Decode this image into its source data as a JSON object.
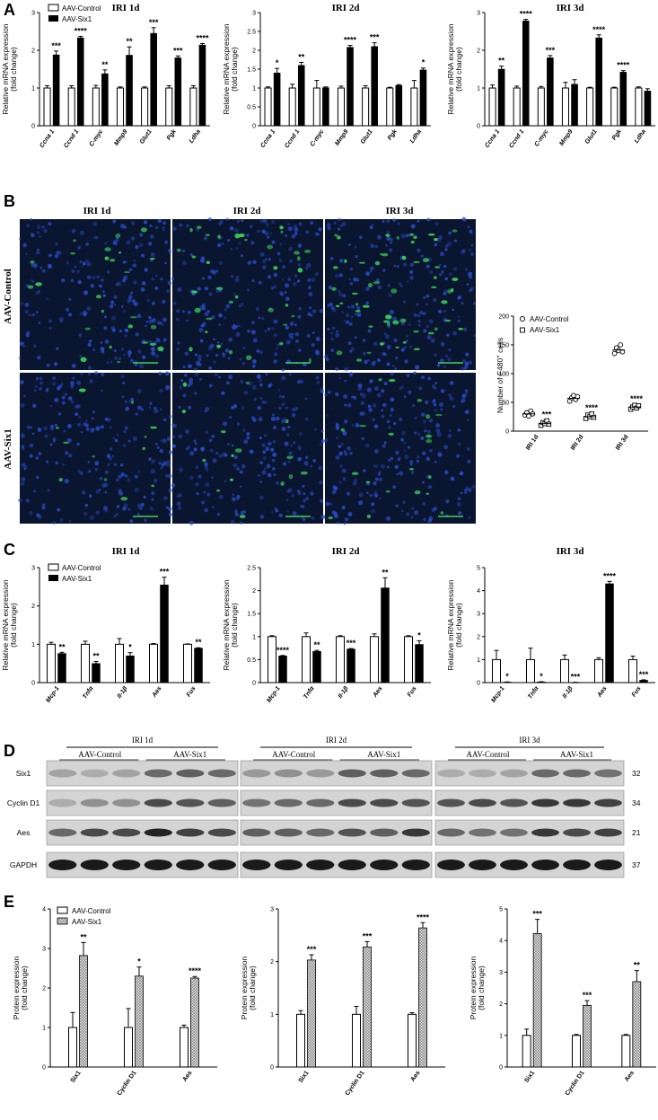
{
  "panels": {
    "A": "A",
    "B": "B",
    "C": "C",
    "D": "D",
    "E": "E"
  },
  "colors": {
    "filled": "#000000",
    "open": "#ffffff",
    "hatched": "#c8c8c8",
    "micro_bg": "#0a1530",
    "nuclei": "#2a4fd0",
    "f480": "#3fd25a"
  },
  "legend_rna": {
    "control": "AAV-Control",
    "six1": "AAV-Six1"
  },
  "legend_micro": {
    "control": "AAV-Control",
    "six1": "AAV-Six1"
  },
  "micro": {
    "col_titles": [
      "IRI 1d",
      "IRI 2d",
      "IRI 3d"
    ],
    "row_labels": [
      "AAV-Control",
      "AAV-Six1"
    ],
    "ylabel_pre": "Number of F480",
    "ylabel_sup": "+",
    "ylabel_post": " cells"
  },
  "western": {
    "groups": [
      "IRI 1d",
      "IRI 2d",
      "IRI 3d"
    ],
    "subgroups": [
      "AAV-Control",
      "AAV-Six1"
    ],
    "proteins": [
      "Six1",
      "Cyclin D1",
      "Aes",
      "GAPDH"
    ],
    "kda": [
      "32",
      "34",
      "21",
      "37"
    ]
  },
  "chart_data": [
    {
      "panel": "A",
      "type": "bar",
      "title": "IRI 1d",
      "ylabel": [
        "Relative mRNA expression",
        "(fold change)"
      ],
      "ylim": [
        0,
        3
      ],
      "yticks": [
        0,
        1,
        2,
        3
      ],
      "categories": [
        "Ccna 1",
        "Ccnd 1",
        "C-myc",
        "Mmp9",
        "Glut1",
        "Pgk",
        "Ldha"
      ],
      "italic": true,
      "series": [
        {
          "name": "AAV-Control",
          "values": [
            1,
            1,
            1,
            1,
            1,
            1,
            1
          ],
          "err": [
            0.06,
            0.06,
            0.07,
            0.03,
            0.03,
            0.06,
            0.06
          ]
        },
        {
          "name": "AAV-Six1",
          "values": [
            1.88,
            2.33,
            1.38,
            1.87,
            2.45,
            1.8,
            2.14
          ],
          "err": [
            0.1,
            0.04,
            0.1,
            0.22,
            0.15,
            0.05,
            0.04
          ]
        }
      ],
      "sig": [
        "***",
        "****",
        "**",
        "**",
        "***",
        "***",
        "****"
      ]
    },
    {
      "panel": "A",
      "type": "bar",
      "title": "IRI 2d",
      "ylabel": [
        "Relative mRNA expression",
        "(fold change)"
      ],
      "ylim": [
        0,
        3
      ],
      "yticks": [
        0,
        0.5,
        1,
        1.5,
        2,
        2.5,
        3
      ],
      "categories": [
        "Ccna 1",
        "Ccnd 1",
        "C-myc",
        "Mmp9",
        "Glut1",
        "Pgk",
        "Ldha"
      ],
      "italic": true,
      "series": [
        {
          "name": "AAV-Control",
          "values": [
            1,
            1,
            1,
            1,
            1,
            1,
            1
          ],
          "err": [
            0.03,
            0.1,
            0.2,
            0.05,
            0.06,
            0.02,
            0.2
          ]
        },
        {
          "name": "AAV-Six1",
          "values": [
            1.4,
            1.6,
            1.01,
            2.08,
            2.1,
            1.07,
            1.48
          ],
          "err": [
            0.12,
            0.08,
            0.02,
            0.05,
            0.1,
            0.02,
            0.05
          ]
        }
      ],
      "sig": [
        "*",
        "**",
        "",
        "****",
        "***",
        "",
        "*"
      ]
    },
    {
      "panel": "A",
      "type": "bar",
      "title": "IRI 3d",
      "ylabel": [
        "Relative mRNA expression",
        "(fold change)"
      ],
      "ylim": [
        0,
        3
      ],
      "yticks": [
        0,
        1,
        2,
        3
      ],
      "categories": [
        "Ccna 1",
        "Ccnd 1",
        "C-myc",
        "Mmp9",
        "Glut1",
        "Pgk",
        "Ldha"
      ],
      "italic": true,
      "series": [
        {
          "name": "AAV-Control",
          "values": [
            1,
            1,
            1,
            1,
            1,
            1,
            1
          ],
          "err": [
            0.08,
            0.05,
            0.04,
            0.15,
            0.02,
            0.02,
            0.03
          ]
        },
        {
          "name": "AAV-Six1",
          "values": [
            1.5,
            2.78,
            1.8,
            1.1,
            2.33,
            1.42,
            0.92
          ],
          "err": [
            0.08,
            0.04,
            0.06,
            0.12,
            0.08,
            0.04,
            0.06
          ]
        }
      ],
      "sig": [
        "**",
        "****",
        "***",
        "",
        "****",
        "****",
        ""
      ]
    },
    {
      "panel": "B",
      "type": "scatter",
      "ylim": [
        0,
        200
      ],
      "yticks": [
        0,
        50,
        100,
        150,
        200
      ],
      "categories": [
        "IRI 1d",
        "IRI 2d",
        "IRI 3d"
      ],
      "series": [
        {
          "name": "AAV-Control",
          "marker": "circle",
          "values": [
            [
              28,
              32,
              26,
              35,
              30
            ],
            [
              52,
              58,
              62,
              55,
              60
            ],
            [
              135,
              145,
              140,
              150,
              138
            ]
          ],
          "mean": [
            30,
            57,
            141
          ]
        },
        {
          "name": "AAV-Six1",
          "marker": "square",
          "values": [
            [
              10,
              15,
              13,
              18,
              12
            ],
            [
              22,
              28,
              25,
              30,
              24
            ],
            [
              38,
              42,
              45,
              40,
              44
            ]
          ],
          "mean": [
            13,
            25,
            42
          ]
        }
      ],
      "sig": [
        "***",
        "****",
        "****"
      ]
    },
    {
      "panel": "C",
      "type": "bar",
      "title": "IRI 1d",
      "ylabel": [
        "Relative mRNA expression",
        "(fold change)"
      ],
      "ylim": [
        0,
        3
      ],
      "yticks": [
        0,
        1,
        2,
        3
      ],
      "categories": [
        "Mcp-1",
        "Tnfα",
        "Il-1β",
        "Aes",
        "Fus"
      ],
      "italic": true,
      "series": [
        {
          "name": "AAV-Control",
          "values": [
            1,
            1,
            1,
            1,
            1
          ],
          "err": [
            0.05,
            0.08,
            0.15,
            0.02,
            0.01
          ]
        },
        {
          "name": "AAV-Six1",
          "values": [
            0.76,
            0.5,
            0.7,
            2.55,
            0.9
          ],
          "err": [
            0.03,
            0.05,
            0.08,
            0.2,
            0.01
          ]
        }
      ],
      "sig": [
        "**",
        "**",
        "*",
        "***",
        "**"
      ]
    },
    {
      "panel": "C",
      "type": "bar",
      "title": "IRI 2d",
      "ylabel": [
        "Relative mRNA expression",
        "(fold change)"
      ],
      "ylim": [
        0,
        2.5
      ],
      "yticks": [
        0,
        0.5,
        1,
        1.5,
        2,
        2.5
      ],
      "categories": [
        "Mcp-1",
        "Tnfα",
        "Il-1β",
        "Aes",
        "Fus"
      ],
      "italic": true,
      "series": [
        {
          "name": "AAV-Control",
          "values": [
            1,
            1,
            1,
            1,
            1
          ],
          "err": [
            0.02,
            0.08,
            0.02,
            0.06,
            0.02
          ]
        },
        {
          "name": "AAV-Six1",
          "values": [
            0.58,
            0.68,
            0.73,
            2.06,
            0.83
          ],
          "err": [
            0.01,
            0.02,
            0.01,
            0.22,
            0.08
          ]
        }
      ],
      "sig": [
        "****",
        "**",
        "***",
        "**",
        "*"
      ]
    },
    {
      "panel": "C",
      "type": "bar",
      "title": "IRI 3d",
      "ylabel": [
        "Relative mRNA expression",
        "(fold change)"
      ],
      "ylim": [
        0,
        5
      ],
      "yticks": [
        0,
        1,
        2,
        3,
        4,
        5
      ],
      "categories": [
        "Mcp-1",
        "Tnfα",
        "Il-1β",
        "Aes",
        "Fus"
      ],
      "italic": true,
      "series": [
        {
          "name": "AAV-Control",
          "values": [
            1,
            1,
            1,
            1,
            1
          ],
          "err": [
            0.4,
            0.5,
            0.2,
            0.08,
            0.15
          ]
        },
        {
          "name": "AAV-Six1",
          "values": [
            0.02,
            0.03,
            0.01,
            4.3,
            0.1
          ],
          "err": [
            0.01,
            0.01,
            0.005,
            0.1,
            0.02
          ]
        }
      ],
      "sig": [
        "*",
        "*",
        "***",
        "****",
        "***"
      ]
    },
    {
      "panel": "E",
      "type": "bar",
      "ylabel": [
        "Protein expression",
        "(fold change)"
      ],
      "ylim": [
        0,
        4
      ],
      "yticks": [
        0,
        1,
        2,
        3,
        4
      ],
      "categories": [
        "Six1",
        "Cyclin D1",
        "Aes"
      ],
      "italic": false,
      "series": [
        {
          "name": "AAV-Control",
          "values": [
            1,
            1,
            1
          ],
          "err": [
            0.38,
            0.48,
            0.06
          ]
        },
        {
          "name": "AAV-Six1",
          "values": [
            2.82,
            2.3,
            2.25
          ],
          "err": [
            0.33,
            0.23,
            0.04
          ]
        }
      ],
      "sig": [
        "**",
        "*",
        "****"
      ]
    },
    {
      "panel": "E",
      "type": "bar",
      "ylabel": [
        "Protein expression",
        "(fold change)"
      ],
      "ylim": [
        0,
        3
      ],
      "yticks": [
        0,
        1,
        2,
        3
      ],
      "categories": [
        "Six1",
        "Cyclin D1",
        "Aes"
      ],
      "italic": false,
      "series": [
        {
          "name": "AAV-Control",
          "values": [
            1,
            1,
            1
          ],
          "err": [
            0.07,
            0.15,
            0.03
          ]
        },
        {
          "name": "AAV-Six1",
          "values": [
            2.03,
            2.28,
            2.64
          ],
          "err": [
            0.1,
            0.1,
            0.1
          ]
        }
      ],
      "sig": [
        "***",
        "***",
        "****"
      ]
    },
    {
      "panel": "E",
      "type": "bar",
      "ylabel": [
        "Protein expression",
        "(fold change)"
      ],
      "ylim": [
        0,
        5
      ],
      "yticks": [
        0,
        1,
        2,
        3,
        4,
        5
      ],
      "categories": [
        "Six1",
        "Cyclin D1",
        "Aes"
      ],
      "italic": false,
      "series": [
        {
          "name": "AAV-Control",
          "values": [
            1,
            1,
            1
          ],
          "err": [
            0.2,
            0.03,
            0.03
          ]
        },
        {
          "name": "AAV-Six1",
          "values": [
            4.22,
            1.95,
            2.7
          ],
          "err": [
            0.45,
            0.15,
            0.35
          ]
        }
      ],
      "sig": [
        "***",
        "***",
        "**"
      ]
    }
  ]
}
